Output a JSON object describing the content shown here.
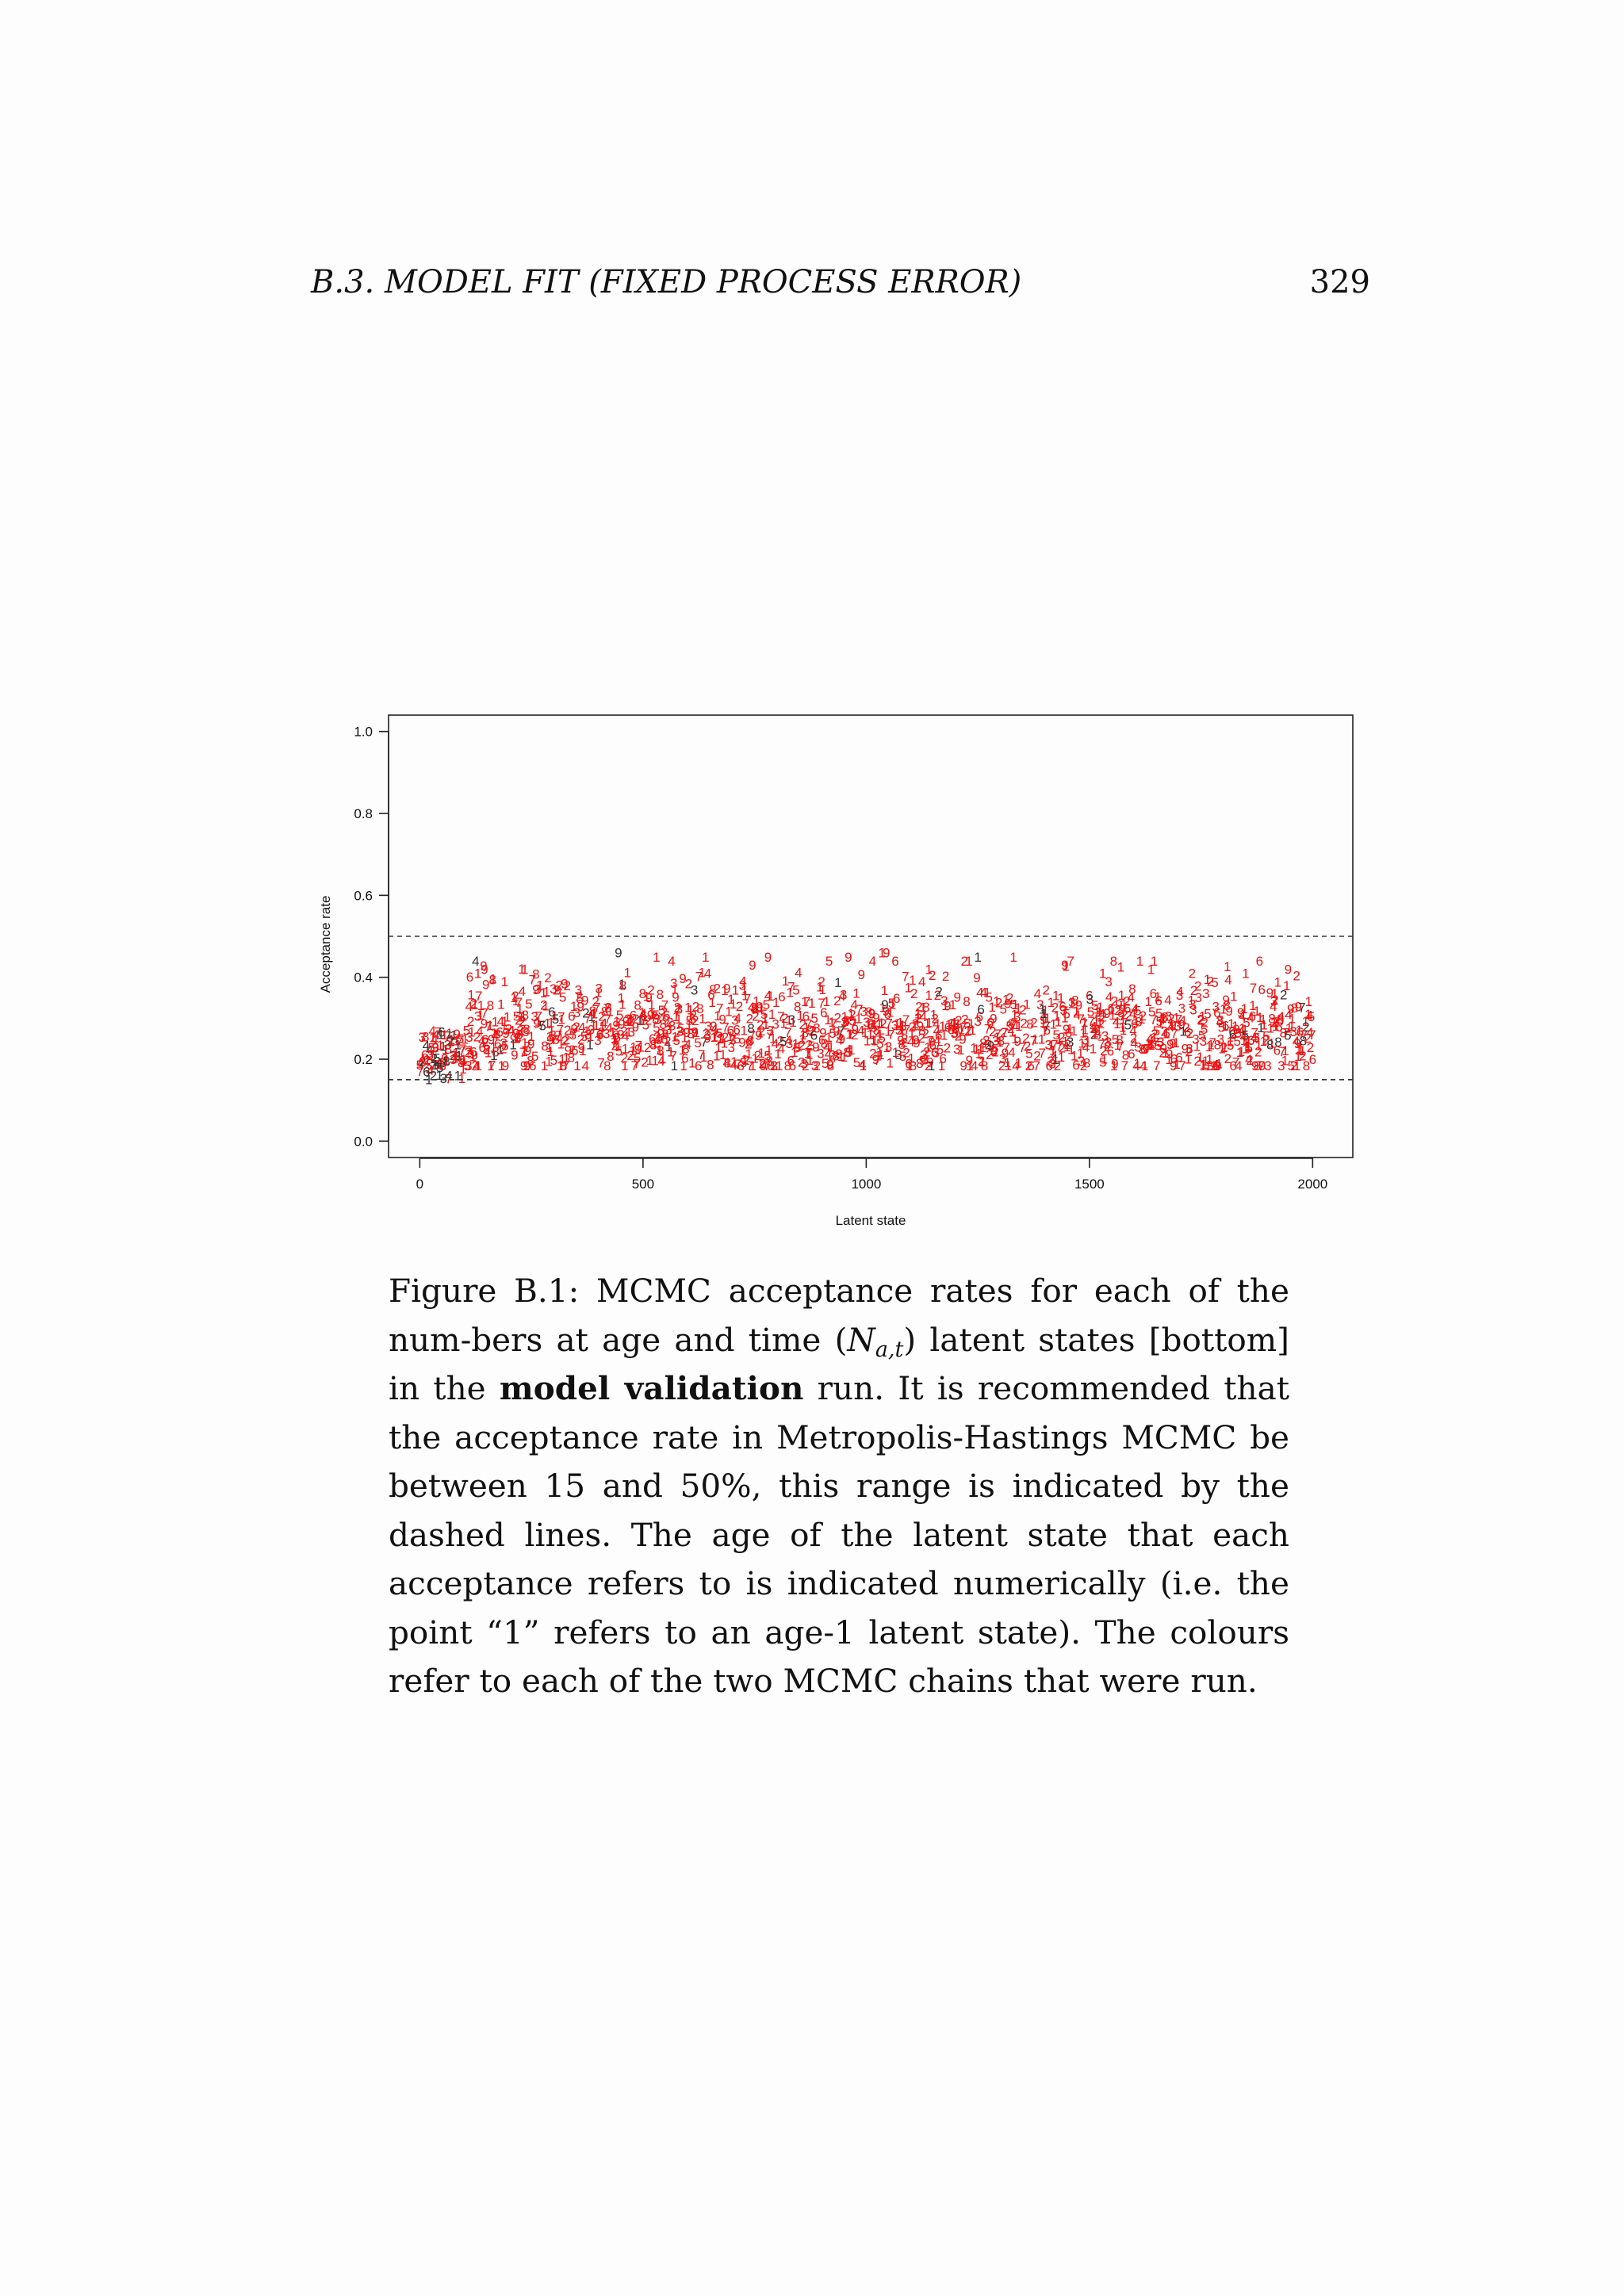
{
  "running_head": {
    "title": "B.3.  MODEL FIT (FIXED PROCESS ERROR)",
    "page_number": "329"
  },
  "caption": {
    "label": "Figure B.1:",
    "part1": "MCMC acceptance rates for each of the num-bers at age and time (",
    "symbol_base": "N",
    "symbol_sub": "a,t",
    "part2": ") latent states [bottom] in the ",
    "bold": "model validation",
    "part3": " run.  It is recommended that the acceptance rate in Metropolis-Hastings MCMC be between 15 and 50%, this range is indicated by the dashed lines.  The age of the latent state that each acceptance refers to is indicated numerically (i.e. the point “1” refers to an age-1 latent state). The colours refer to each of the two MCMC chains that were run."
  },
  "chart_data": {
    "type": "scatter",
    "xlabel": "Latent state",
    "ylabel": "Acceptance rate",
    "xlim": [
      -70,
      2090
    ],
    "ylim": [
      -0.04,
      1.04
    ],
    "x_ticks": [
      0,
      500,
      1000,
      1500,
      2000
    ],
    "y_ticks": [
      0.0,
      0.2,
      0.4,
      0.6,
      0.8,
      1.0
    ],
    "reference_lines": [
      0.15,
      0.5
    ],
    "grid": false,
    "legend": "none",
    "marker": "age digit",
    "chains": [
      {
        "color": "#333333"
      },
      {
        "color": "#ee1111"
      }
    ],
    "summary": {
      "n_states": 2000,
      "typical_range": [
        0.17,
        0.45
      ],
      "initial_segment": {
        "x_range": [
          0,
          100
        ],
        "y_range": [
          0.15,
          0.27
        ]
      },
      "bulk_mean": 0.27
    },
    "points": [
      {
        "x": 5,
        "y": 0.2,
        "age": "4",
        "chain": 1
      },
      {
        "x": 15,
        "y": 0.17,
        "age": "6",
        "chain": 0
      },
      {
        "x": 25,
        "y": 0.21,
        "age": "2",
        "chain": 1
      },
      {
        "x": 35,
        "y": 0.23,
        "age": "9",
        "chain": 1
      },
      {
        "x": 45,
        "y": 0.18,
        "age": "5",
        "chain": 0
      },
      {
        "x": 55,
        "y": 0.26,
        "age": "1",
        "chain": 1
      },
      {
        "x": 65,
        "y": 0.16,
        "age": "4",
        "chain": 0
      },
      {
        "x": 75,
        "y": 0.2,
        "age": "3",
        "chain": 1
      },
      {
        "x": 85,
        "y": 0.16,
        "age": "1",
        "chain": 0
      },
      {
        "x": 95,
        "y": 0.22,
        "age": "7",
        "chain": 1
      },
      {
        "x": 110,
        "y": 0.33,
        "age": "4",
        "chain": 1
      },
      {
        "x": 130,
        "y": 0.41,
        "age": "1",
        "chain": 1
      },
      {
        "x": 145,
        "y": 0.42,
        "age": "9",
        "chain": 1
      },
      {
        "x": 190,
        "y": 0.39,
        "age": "1",
        "chain": 1
      },
      {
        "x": 235,
        "y": 0.42,
        "age": "1",
        "chain": 1
      },
      {
        "x": 260,
        "y": 0.37,
        "age": "9",
        "chain": 1
      },
      {
        "x": 330,
        "y": 0.38,
        "age": "2",
        "chain": 1
      },
      {
        "x": 445,
        "y": 0.46,
        "age": "9",
        "chain": 0
      },
      {
        "x": 455,
        "y": 0.38,
        "age": "8",
        "chain": 1
      },
      {
        "x": 530,
        "y": 0.45,
        "age": "1",
        "chain": 1
      },
      {
        "x": 640,
        "y": 0.45,
        "age": "1",
        "chain": 1
      },
      {
        "x": 645,
        "y": 0.41,
        "age": "4",
        "chain": 1
      },
      {
        "x": 745,
        "y": 0.43,
        "age": "9",
        "chain": 1
      },
      {
        "x": 780,
        "y": 0.45,
        "age": "9",
        "chain": 1
      },
      {
        "x": 900,
        "y": 0.39,
        "age": "2",
        "chain": 1
      },
      {
        "x": 960,
        "y": 0.45,
        "age": "9",
        "chain": 1
      },
      {
        "x": 1035,
        "y": 0.46,
        "age": "1",
        "chain": 1
      },
      {
        "x": 1045,
        "y": 0.46,
        "age": "9",
        "chain": 1
      },
      {
        "x": 1125,
        "y": 0.39,
        "age": "4",
        "chain": 1
      },
      {
        "x": 1140,
        "y": 0.42,
        "age": "1",
        "chain": 1
      },
      {
        "x": 1250,
        "y": 0.45,
        "age": "1",
        "chain": 0
      },
      {
        "x": 1330,
        "y": 0.45,
        "age": "1",
        "chain": 1
      },
      {
        "x": 1445,
        "y": 0.43,
        "age": "9",
        "chain": 1
      },
      {
        "x": 1530,
        "y": 0.41,
        "age": "1",
        "chain": 1
      },
      {
        "x": 1645,
        "y": 0.44,
        "age": "1",
        "chain": 1
      },
      {
        "x": 1730,
        "y": 0.41,
        "age": "2",
        "chain": 1
      },
      {
        "x": 1850,
        "y": 0.41,
        "age": "1",
        "chain": 1
      },
      {
        "x": 1945,
        "y": 0.42,
        "age": "9",
        "chain": 1
      },
      {
        "x": 1990,
        "y": 0.31,
        "age": "1",
        "chain": 1
      },
      {
        "x": 2000,
        "y": 0.2,
        "age": "6",
        "chain": 1
      }
    ]
  }
}
